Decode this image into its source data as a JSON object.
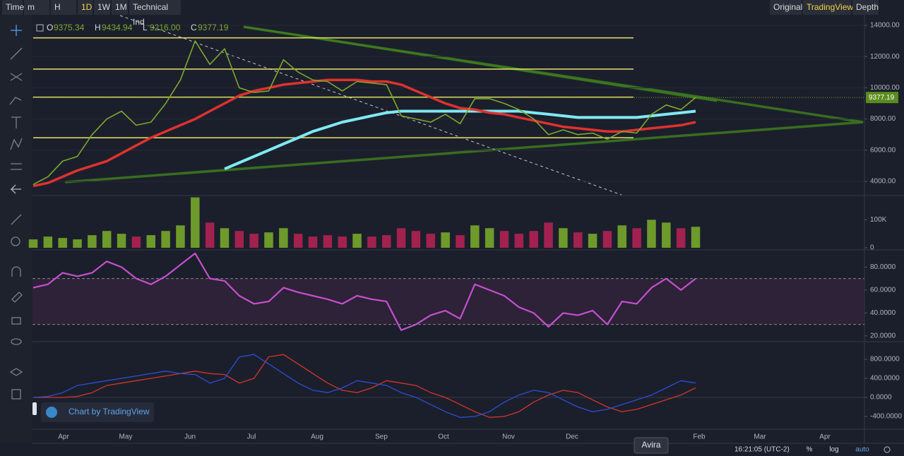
{
  "toolbar": {
    "left": [
      "Time",
      "m",
      "H",
      "1D",
      "1W",
      "1M",
      "Technical Ind"
    ],
    "right": [
      "Original",
      "TradingView",
      "Depth"
    ]
  },
  "legend": [
    {
      "key": "O",
      "value": "9375.34"
    },
    {
      "key": "H",
      "value": "9434.94"
    },
    {
      "key": "L",
      "value": "9216.00"
    },
    {
      "key": "C",
      "value": "9377.19"
    }
  ],
  "price_pane": {
    "ylim": [
      3140,
      14630
    ],
    "yticks": [
      {
        "value": 14000,
        "label": "14000.00"
      },
      {
        "value": 12000,
        "label": "12000.00"
      },
      {
        "value": 10000,
        "label": "10000.00"
      },
      {
        "value": 8000,
        "label": "8000.00"
      },
      {
        "value": 6000,
        "label": "6000.00"
      },
      {
        "value": 4000,
        "label": "4000.00"
      }
    ],
    "close": [
      3800,
      4300,
      5300,
      5600,
      7000,
      8000,
      8500,
      7600,
      7800,
      9000,
      10500,
      13000,
      11500,
      12500,
      10000,
      9700,
      9800,
      11800,
      11000,
      10500,
      10400,
      9800,
      10400,
      10300,
      10200,
      8200,
      8000,
      7800,
      8300,
      7700,
      9300,
      9300,
      9000,
      8600,
      8000,
      7000,
      7300,
      7000,
      7100,
      6700,
      7200,
      7100,
      8300,
      8900,
      8600,
      9377.19
    ],
    "ma_red": [
      3700,
      3900,
      4300,
      4700,
      5000,
      5300,
      5800,
      6300,
      6800,
      7200,
      7600,
      8000,
      8500,
      9000,
      9500,
      9800,
      10000,
      10200,
      10300,
      10400,
      10500,
      10500,
      10500,
      10400,
      10400,
      10200,
      9800,
      9400,
      9000,
      8700,
      8600,
      8400,
      8300,
      8100,
      7900,
      7700,
      7500,
      7400,
      7300,
      7200,
      7200,
      7300,
      7400,
      7500,
      7600,
      7800
    ],
    "ma_cyan": [
      null,
      null,
      null,
      null,
      null,
      null,
      null,
      null,
      null,
      null,
      null,
      null,
      null,
      4800,
      5200,
      5600,
      6000,
      6400,
      6800,
      7200,
      7500,
      7800,
      8000,
      8200,
      8400,
      8500,
      8500,
      8500,
      8500,
      8500,
      8500,
      8500,
      8500,
      8500,
      8400,
      8300,
      8200,
      8100,
      8100,
      8100,
      8100,
      8100,
      8200,
      8300,
      8400,
      8500
    ],
    "levels": [
      13200,
      11200,
      9400,
      6800
    ],
    "last_price": {
      "value": 9377.19,
      "label": "9377.19"
    }
  },
  "volume_pane": {
    "ylim": [
      -5000,
      184000
    ],
    "yticks": [
      {
        "value": 100000,
        "label": "100K"
      },
      0
    ],
    "values": [
      30000,
      40000,
      35000,
      30000,
      45000,
      60000,
      50000,
      40000,
      45000,
      60000,
      80000,
      180000,
      90000,
      70000,
      60000,
      50000,
      55000,
      70000,
      50000,
      40000,
      45000,
      40000,
      50000,
      40000,
      45000,
      70000,
      60000,
      50000,
      55000,
      45000,
      80000,
      70000,
      60000,
      50000,
      60000,
      90000,
      70000,
      55000,
      50000,
      60000,
      80000,
      70000,
      100000,
      90000,
      70000,
      75000
    ]
  },
  "rsi_pane": {
    "ylim": [
      15.6,
      94.4
    ],
    "yticks": [
      {
        "value": 80,
        "label": "80.0000"
      },
      {
        "value": 60,
        "label": "60.0000"
      },
      {
        "value": 40,
        "label": "40.0000"
      },
      {
        "value": 20,
        "label": "20.0000"
      }
    ],
    "bands": [
      70,
      30
    ],
    "values": [
      62,
      65,
      75,
      72,
      75,
      85,
      80,
      70,
      65,
      72,
      82,
      92,
      70,
      68,
      55,
      48,
      50,
      62,
      58,
      55,
      52,
      48,
      55,
      52,
      50,
      25,
      30,
      38,
      42,
      35,
      65,
      60,
      55,
      45,
      40,
      28,
      40,
      38,
      42,
      30,
      50,
      48,
      62,
      70,
      60,
      70
    ]
  },
  "macd_pane": {
    "ylim": [
      -652,
      1155
    ],
    "yticks": [
      {
        "value": 800,
        "label": "800.0000"
      },
      {
        "value": 400,
        "label": "400.0000"
      },
      {
        "value": 0,
        "label": "0.0000"
      },
      {
        "value": -400,
        "label": "-400.0000"
      }
    ],
    "macd": [
      0,
      20,
      100,
      250,
      300,
      350,
      400,
      450,
      500,
      550,
      500,
      480,
      300,
      400,
      850,
      900,
      700,
      500,
      300,
      150,
      100,
      200,
      350,
      300,
      250,
      100,
      0,
      -150,
      -300,
      -420,
      -400,
      -300,
      -100,
      50,
      150,
      100,
      -50,
      -200,
      -300,
      -250,
      -150,
      -50,
      50,
      200,
      350,
      300
    ],
    "signal": [
      0,
      0,
      0,
      20,
      100,
      250,
      300,
      350,
      400,
      450,
      500,
      550,
      500,
      480,
      300,
      400,
      850,
      900,
      700,
      500,
      300,
      150,
      100,
      200,
      350,
      300,
      250,
      100,
      0,
      -150,
      -300,
      -420,
      -400,
      -300,
      -100,
      50,
      150,
      100,
      -50,
      -200,
      -300,
      -250,
      -150,
      -50,
      50,
      200
    ]
  },
  "time_axis": {
    "months": [
      "Apr",
      "May",
      "Jun",
      "Jul",
      "Aug",
      "Sep",
      "Oct",
      "Nov",
      "Dec",
      "Feb",
      "Mar",
      "Apr"
    ]
  },
  "status_bar": {
    "clock": "16:21:05 (UTC-2)",
    "buttons": [
      "%",
      "log",
      "auto"
    ]
  },
  "tooltip": "Avira",
  "watermark": "Chart by TradingView"
}
